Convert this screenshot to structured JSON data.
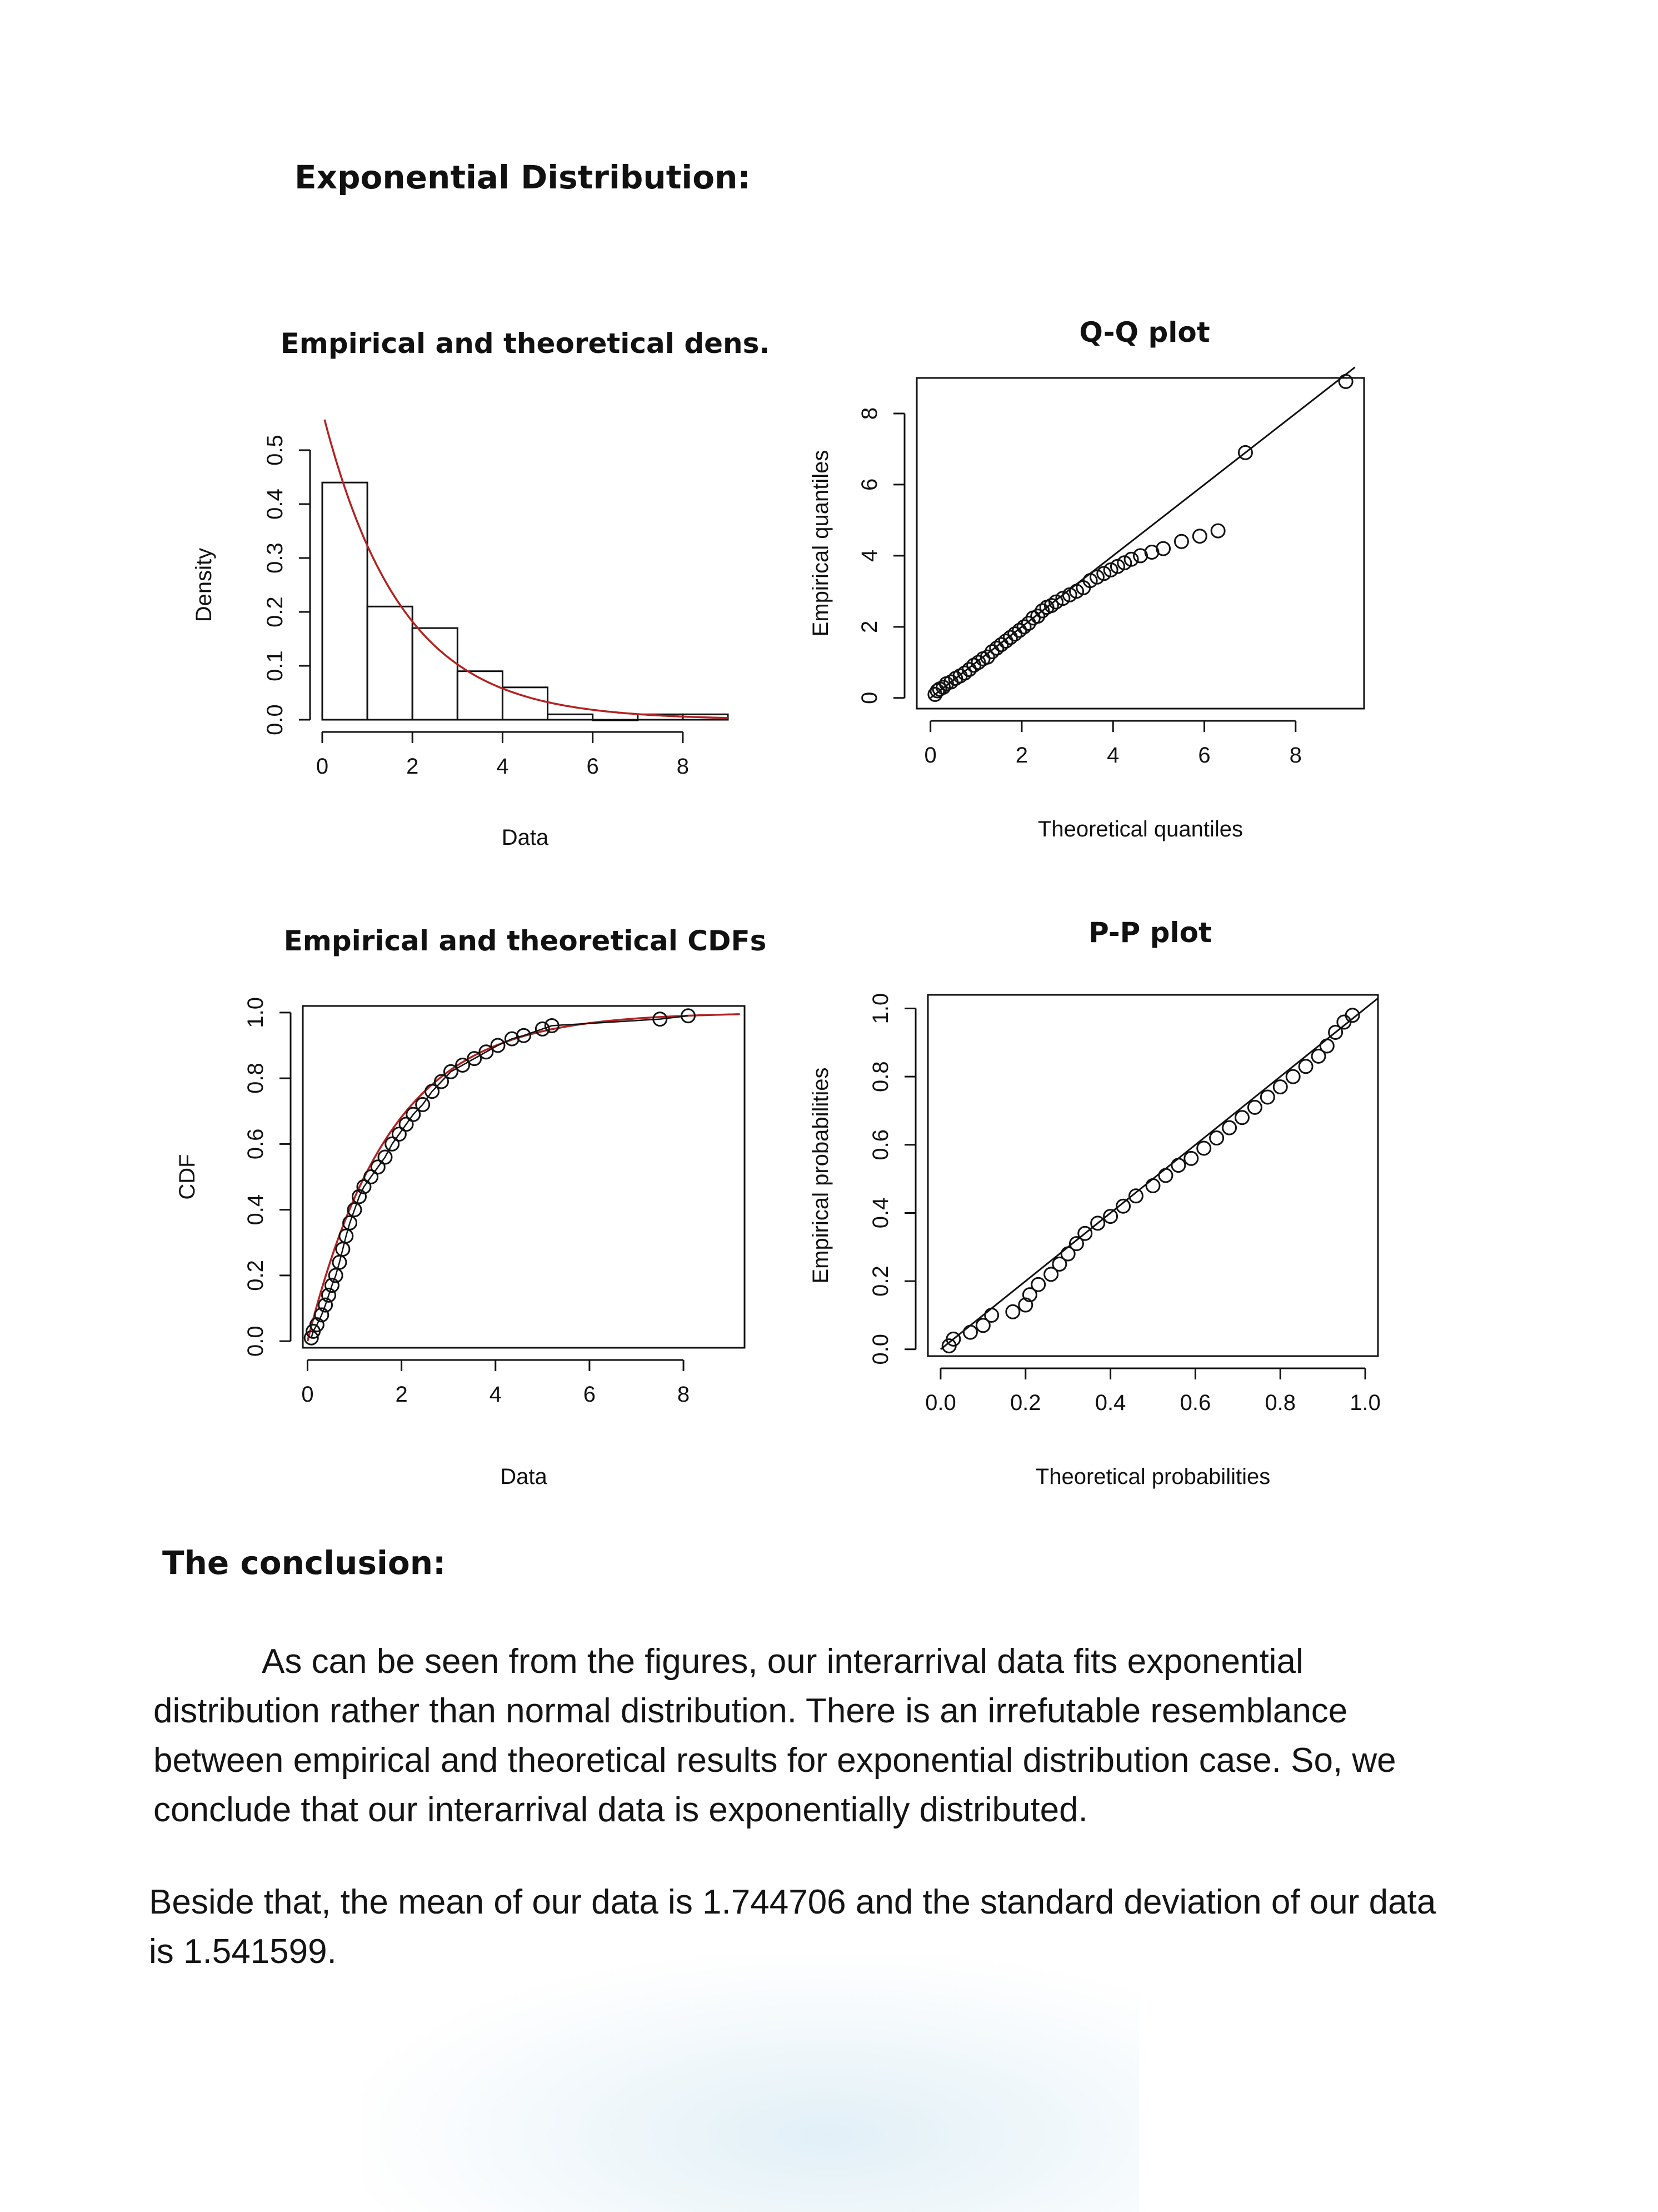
{
  "heading": "Exponential Distribution:",
  "conclusion_heading": "The conclusion:",
  "paragraph1": {
    "lines": [
      "As can be seen from the figures, our interarrival data fits exponential",
      "distribution rather than normal distribution. There is an irrefutable resemblance",
      "between empirical and theoretical results for exponential distribution case. So, we",
      "conclude that our interarrival data is exponentially distributed."
    ]
  },
  "paragraph2": {
    "lines": [
      "Beside that, the mean of our data is 1.744706 and the standard deviation of our data",
      "is 1.541599."
    ]
  },
  "colors": {
    "theoretical_curve": "#b22222",
    "points": "#111111"
  },
  "chart_data": [
    {
      "type": "bar",
      "title": "Empirical and theoretical dens.",
      "xlabel": "Data",
      "ylabel": "Density",
      "xlim": [
        0,
        9
      ],
      "ylim": [
        0,
        0.5
      ],
      "xticks": [
        "0",
        "2",
        "4",
        "6",
        "8"
      ],
      "yticks": [
        "0.0",
        "0.1",
        "0.2",
        "0.3",
        "0.4",
        "0.5"
      ],
      "bins": [
        [
          0,
          1
        ],
        [
          1,
          2
        ],
        [
          2,
          3
        ],
        [
          3,
          4
        ],
        [
          4,
          5
        ],
        [
          5,
          6
        ],
        [
          6,
          7
        ],
        [
          7,
          8
        ],
        [
          8,
          9
        ]
      ],
      "values": [
        0.44,
        0.21,
        0.17,
        0.09,
        0.06,
        0.01,
        0.0,
        0.01,
        0.01
      ],
      "overlay": {
        "type": "line",
        "name": "exponential density",
        "rate": 0.573
      }
    },
    {
      "type": "scatter",
      "title": "Q-Q plot",
      "xlabel": "Theoretical quantiles",
      "ylabel": "Empirical quantiles",
      "xlim": [
        -0.3,
        9.5
      ],
      "ylim": [
        -0.3,
        9
      ],
      "xticks": [
        "0",
        "2",
        "4",
        "6",
        "8"
      ],
      "yticks": [
        "0",
        "2",
        "4",
        "6",
        "8"
      ],
      "reference_line": "y = x",
      "points": [
        [
          0.1,
          0.1
        ],
        [
          0.15,
          0.2
        ],
        [
          0.2,
          0.25
        ],
        [
          0.28,
          0.3
        ],
        [
          0.35,
          0.4
        ],
        [
          0.45,
          0.45
        ],
        [
          0.55,
          0.55
        ],
        [
          0.65,
          0.62
        ],
        [
          0.75,
          0.7
        ],
        [
          0.85,
          0.8
        ],
        [
          0.95,
          0.92
        ],
        [
          1.05,
          1.0
        ],
        [
          1.15,
          1.1
        ],
        [
          1.25,
          1.15
        ],
        [
          1.35,
          1.3
        ],
        [
          1.45,
          1.4
        ],
        [
          1.55,
          1.5
        ],
        [
          1.65,
          1.6
        ],
        [
          1.75,
          1.7
        ],
        [
          1.85,
          1.8
        ],
        [
          1.95,
          1.9
        ],
        [
          2.05,
          2.0
        ],
        [
          2.15,
          2.1
        ],
        [
          2.25,
          2.25
        ],
        [
          2.35,
          2.3
        ],
        [
          2.45,
          2.45
        ],
        [
          2.55,
          2.55
        ],
        [
          2.65,
          2.6
        ],
        [
          2.75,
          2.7
        ],
        [
          2.9,
          2.8
        ],
        [
          3.05,
          2.9
        ],
        [
          3.2,
          3.0
        ],
        [
          3.35,
          3.1
        ],
        [
          3.5,
          3.3
        ],
        [
          3.65,
          3.4
        ],
        [
          3.8,
          3.5
        ],
        [
          3.95,
          3.6
        ],
        [
          4.1,
          3.7
        ],
        [
          4.25,
          3.8
        ],
        [
          4.4,
          3.9
        ],
        [
          4.6,
          4.0
        ],
        [
          4.85,
          4.1
        ],
        [
          5.1,
          4.2
        ],
        [
          5.5,
          4.4
        ],
        [
          5.9,
          4.55
        ],
        [
          6.3,
          4.7
        ],
        [
          6.9,
          6.9
        ],
        [
          9.1,
          8.9
        ]
      ]
    },
    {
      "type": "line",
      "title": "Empirical and theoretical CDFs",
      "xlabel": "Data",
      "ylabel": "CDF",
      "xlim": [
        -0.1,
        9.3
      ],
      "ylim": [
        -0.02,
        1.02
      ],
      "xticks": [
        "0",
        "2",
        "4",
        "6",
        "8"
      ],
      "yticks": [
        "0.0",
        "0.2",
        "0.4",
        "0.6",
        "0.8",
        "1.0"
      ],
      "empirical_points": [
        [
          0.08,
          0.01
        ],
        [
          0.12,
          0.03
        ],
        [
          0.2,
          0.05
        ],
        [
          0.3,
          0.08
        ],
        [
          0.38,
          0.11
        ],
        [
          0.45,
          0.14
        ],
        [
          0.52,
          0.17
        ],
        [
          0.6,
          0.2
        ],
        [
          0.68,
          0.24
        ],
        [
          0.75,
          0.28
        ],
        [
          0.82,
          0.32
        ],
        [
          0.9,
          0.36
        ],
        [
          1.0,
          0.4
        ],
        [
          1.1,
          0.44
        ],
        [
          1.2,
          0.47
        ],
        [
          1.35,
          0.5
        ],
        [
          1.5,
          0.53
        ],
        [
          1.65,
          0.56
        ],
        [
          1.8,
          0.6
        ],
        [
          1.95,
          0.63
        ],
        [
          2.1,
          0.66
        ],
        [
          2.25,
          0.69
        ],
        [
          2.45,
          0.72
        ],
        [
          2.65,
          0.76
        ],
        [
          2.85,
          0.79
        ],
        [
          3.05,
          0.82
        ],
        [
          3.3,
          0.84
        ],
        [
          3.55,
          0.86
        ],
        [
          3.8,
          0.88
        ],
        [
          4.05,
          0.9
        ],
        [
          4.35,
          0.92
        ],
        [
          4.6,
          0.93
        ],
        [
          5.0,
          0.95
        ],
        [
          5.2,
          0.96
        ],
        [
          7.5,
          0.98
        ],
        [
          8.1,
          0.99
        ]
      ],
      "overlay": {
        "type": "line",
        "name": "exponential CDF",
        "rate": 0.573
      }
    },
    {
      "type": "scatter",
      "title": "P-P plot",
      "xlabel": "Theoretical probabilities",
      "ylabel": "Empirical probabilities",
      "xlim": [
        -0.03,
        1.03
      ],
      "ylim": [
        -0.02,
        1.04
      ],
      "xticks": [
        "0.0",
        "0.2",
        "0.4",
        "0.6",
        "0.8",
        "1.0"
      ],
      "yticks": [
        "0.0",
        "0.2",
        "0.4",
        "0.6",
        "0.8",
        "1.0"
      ],
      "reference_line": "y = x",
      "points": [
        [
          0.02,
          0.01
        ],
        [
          0.03,
          0.03
        ],
        [
          0.07,
          0.05
        ],
        [
          0.1,
          0.07
        ],
        [
          0.12,
          0.1
        ],
        [
          0.17,
          0.11
        ],
        [
          0.2,
          0.13
        ],
        [
          0.21,
          0.16
        ],
        [
          0.23,
          0.19
        ],
        [
          0.26,
          0.22
        ],
        [
          0.28,
          0.25
        ],
        [
          0.3,
          0.28
        ],
        [
          0.32,
          0.31
        ],
        [
          0.34,
          0.34
        ],
        [
          0.37,
          0.37
        ],
        [
          0.4,
          0.39
        ],
        [
          0.43,
          0.42
        ],
        [
          0.46,
          0.45
        ],
        [
          0.5,
          0.48
        ],
        [
          0.53,
          0.51
        ],
        [
          0.56,
          0.54
        ],
        [
          0.59,
          0.56
        ],
        [
          0.62,
          0.59
        ],
        [
          0.65,
          0.62
        ],
        [
          0.68,
          0.65
        ],
        [
          0.71,
          0.68
        ],
        [
          0.74,
          0.71
        ],
        [
          0.77,
          0.74
        ],
        [
          0.8,
          0.77
        ],
        [
          0.83,
          0.8
        ],
        [
          0.86,
          0.83
        ],
        [
          0.89,
          0.86
        ],
        [
          0.91,
          0.89
        ],
        [
          0.93,
          0.93
        ],
        [
          0.95,
          0.96
        ],
        [
          0.97,
          0.98
        ]
      ]
    }
  ]
}
